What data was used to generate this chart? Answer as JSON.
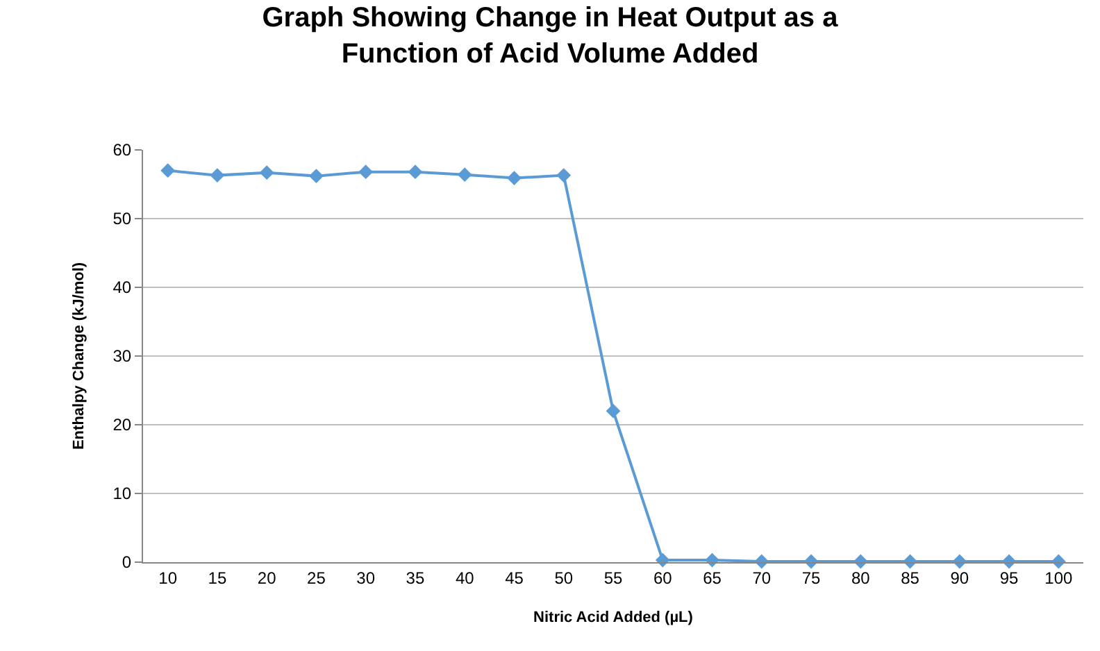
{
  "chart_data": {
    "type": "line",
    "title": "Graph Showing Change in Heat Output as a\nFunction of Acid Volume Added",
    "xlabel": "Nitric Acid Added (µL)",
    "ylabel": "Enthalpy Change (kJ/mol)",
    "categories": [
      "10",
      "15",
      "20",
      "25",
      "30",
      "35",
      "40",
      "45",
      "50",
      "55",
      "60",
      "65",
      "70",
      "75",
      "80",
      "85",
      "90",
      "95",
      "100"
    ],
    "series": [
      {
        "color": "#5b9bd5",
        "values": [
          57,
          56.3,
          56.7,
          56.2,
          56.8,
          56.8,
          56.4,
          55.9,
          56.3,
          22,
          0.3,
          0.3,
          0.1,
          0.1,
          0.1,
          0.1,
          0.1,
          0.1,
          0.1
        ]
      }
    ],
    "ylim": [
      0,
      60
    ],
    "yticks": [
      0,
      10,
      20,
      30,
      40,
      50,
      60
    ],
    "grid": "y",
    "legend": false,
    "marker": "diamond",
    "line_style": "solid"
  }
}
